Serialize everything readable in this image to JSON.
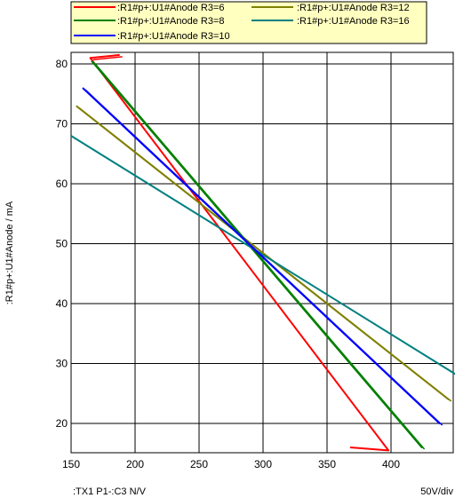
{
  "chart_data": {
    "type": "line",
    "x_label_bottom_left": ":TX1  P1-:C3  N/V",
    "x_scale_label": "50V/div",
    "ylabel": ":R1#p+:U1#Anode / mA",
    "xlim": [
      150,
      450
    ],
    "ylim": [
      15,
      82
    ],
    "x_ticks": [
      "150",
      "200",
      "250",
      "300",
      "350",
      "400"
    ],
    "y_ticks": [
      "20",
      "30",
      "40",
      "50",
      "60",
      "70",
      "80"
    ],
    "grid": true,
    "legend_position": "top",
    "series": [
      {
        "name": ":R1#p+:U1#Anode R3=6",
        "color": "#ff0000",
        "x": [
          188,
          165,
          398,
          368
        ],
        "y": [
          81.5,
          81,
          15.5,
          16
        ]
      },
      {
        "name": ":R1#p+:U1#Anode R3=12",
        "color": "#808000",
        "x": [
          154,
          445,
          154
        ],
        "y": [
          73,
          24,
          73
        ]
      },
      {
        "name": ":R1#p+:U1#Anode R3=8",
        "color": "#008000",
        "x": [
          166,
          424,
          166
        ],
        "y": [
          80.5,
          16,
          80.5
        ]
      },
      {
        "name": ":R1#p+:U1#Anode R3=16",
        "color": "#008080",
        "x": [
          150,
          452,
          150
        ],
        "y": [
          68,
          28,
          68
        ]
      },
      {
        "name": ":R1#p+:U1#Anode R3=10",
        "color": "#0000ff",
        "x": [
          159,
          438,
          159
        ],
        "y": [
          76,
          20,
          76
        ]
      }
    ]
  }
}
